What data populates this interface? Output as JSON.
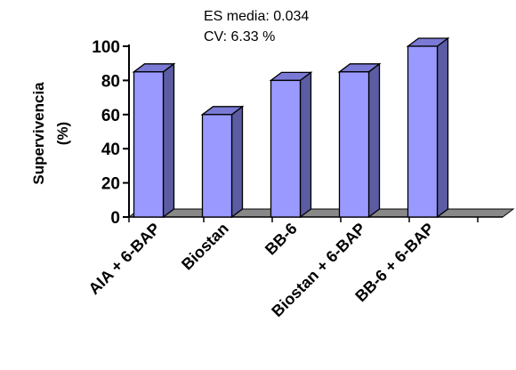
{
  "colors": {
    "bar_front": "#9999ff",
    "bar_side": "#5c5ca3",
    "bar_top": "#7a7ad6",
    "floor": "#888888",
    "text": "#000000"
  },
  "stats": {
    "es_media": "ES media: 0.034",
    "cv": "CV: 6.33 %"
  },
  "chart_data": {
    "type": "bar",
    "style": "3d",
    "categories": [
      "AIA + 6-BAP",
      "Biostan",
      "BB-6",
      "Biostan + 6-BAP",
      "BB-6 + 6-BAP"
    ],
    "values": [
      85,
      60,
      80,
      85,
      100
    ],
    "ylabel_line1": "Supervivencia",
    "ylabel_line2": "(%)",
    "ylim": [
      0,
      100
    ],
    "yticks": [
      "0",
      "20",
      "40",
      "60",
      "80",
      "100"
    ],
    "grid": false,
    "legend": "none"
  }
}
